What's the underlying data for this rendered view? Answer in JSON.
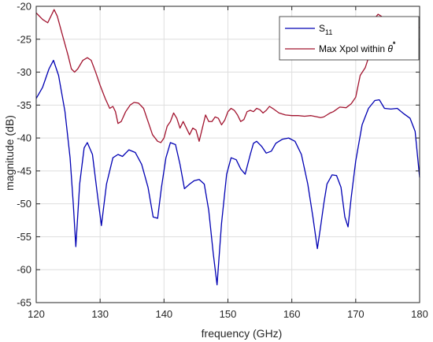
{
  "chart_data": {
    "type": "line",
    "title": "",
    "xlabel": "frequency (GHz)",
    "ylabel": "magnitude (dB)",
    "xlim": [
      120,
      180
    ],
    "ylim": [
      -65,
      -20
    ],
    "xticks": [
      120,
      130,
      140,
      150,
      160,
      170,
      180
    ],
    "yticks": [
      -20,
      -25,
      -30,
      -35,
      -40,
      -45,
      -50,
      -55,
      -60,
      -65
    ],
    "grid": true,
    "legend_position": "top-right",
    "legend": {
      "s11_main": "S",
      "s11_sub": "11",
      "xpol_main": "Max Xpol within ",
      "xpol_symbol": "θ",
      "xpol_sup": "*"
    },
    "series": [
      {
        "color": "#0000b3",
        "x": [
          120,
          121,
          122,
          122.7,
          123.5,
          124.5,
          125.3,
          125.8,
          126.2,
          126.8,
          127.5,
          128,
          128.8,
          129.5,
          130.2,
          131,
          132,
          132.8,
          133.5,
          134.5,
          135.5,
          136.5,
          137.5,
          138.3,
          139,
          139.6,
          140.3,
          141,
          141.8,
          142.5,
          143.2,
          144,
          144.7,
          145.5,
          146.3,
          147,
          147.7,
          148.3,
          149,
          149.8,
          150.5,
          151.3,
          152,
          152.7,
          153.5,
          154,
          154.5,
          155.3,
          156,
          156.8,
          157.5,
          158.5,
          159.5,
          160.5,
          161.5,
          162.5,
          163.3,
          164,
          164.5,
          165,
          165.5,
          166.3,
          167,
          167.7,
          168.3,
          168.8,
          169.3,
          170,
          171,
          172,
          173,
          173.7,
          174.5,
          175.5,
          176.5,
          177.5,
          178.5,
          179.3,
          180
        ],
        "values": [
          -34,
          -32.3,
          -29.5,
          -28.2,
          -30.5,
          -36,
          -43,
          -50,
          -56.5,
          -47,
          -41.5,
          -40.7,
          -42.5,
          -48,
          -53.3,
          -47,
          -43,
          -42.5,
          -42.8,
          -41.8,
          -42.2,
          -44,
          -47.5,
          -52,
          -52.2,
          -47.5,
          -43,
          -40.7,
          -41,
          -44,
          -47.7,
          -47,
          -46.5,
          -46.3,
          -47,
          -51,
          -57.5,
          -62.3,
          -53,
          -45.5,
          -43,
          -43.3,
          -44.7,
          -45.5,
          -42.5,
          -40.8,
          -40.5,
          -41.3,
          -42.3,
          -42,
          -40.8,
          -40.2,
          -40,
          -40.5,
          -42.5,
          -47,
          -52,
          -56.8,
          -53.5,
          -50,
          -47,
          -45.6,
          -45.7,
          -47.5,
          -52,
          -53.5,
          -49,
          -43.5,
          -38,
          -35.5,
          -34.3,
          -34.2,
          -35.5,
          -35.6,
          -35.5,
          -36.3,
          -37,
          -39,
          -46
        ]
      },
      {
        "color": "#a2142f",
        "x": [
          120,
          121,
          121.8,
          122.3,
          122.8,
          123.3,
          124,
          125,
          125.5,
          126,
          126.5,
          127.3,
          128,
          128.6,
          129.3,
          130,
          130.8,
          131.5,
          132,
          132.4,
          132.8,
          133.3,
          134,
          134.7,
          135.3,
          136,
          136.8,
          137.5,
          138.2,
          139,
          139.5,
          140,
          140.5,
          141,
          141.5,
          142,
          142.5,
          143,
          143.5,
          144,
          144.5,
          145,
          145.5,
          146,
          146.5,
          147,
          147.5,
          148,
          148.5,
          149,
          149.5,
          150,
          150.5,
          151,
          151.5,
          152,
          152.5,
          153,
          153.5,
          154,
          154.5,
          155,
          155.5,
          156,
          156.5,
          157,
          158,
          159,
          160,
          161,
          162,
          163,
          164,
          164.5,
          165,
          165.5,
          166,
          166.5,
          167.5,
          168.5,
          169.3,
          170,
          170.7,
          171.5,
          172,
          172.5,
          173,
          173.5,
          174,
          175,
          176,
          177,
          178,
          179,
          180
        ],
        "values": [
          -21,
          -22,
          -22.5,
          -21.5,
          -20.5,
          -21.5,
          -24,
          -27.5,
          -29.5,
          -30,
          -29.5,
          -28.2,
          -27.8,
          -28.2,
          -30,
          -32,
          -34,
          -35.5,
          -35.2,
          -36,
          -37.8,
          -37.5,
          -36,
          -35,
          -34.6,
          -34.7,
          -35.5,
          -37.5,
          -39.5,
          -40.5,
          -40.7,
          -40,
          -38.2,
          -37.5,
          -36.2,
          -37,
          -38.5,
          -37.5,
          -38.5,
          -39.5,
          -38.5,
          -38.8,
          -40.5,
          -38.5,
          -36.5,
          -37.5,
          -37.5,
          -36.8,
          -37,
          -38,
          -37.3,
          -36,
          -35.5,
          -35.8,
          -36.5,
          -37.5,
          -37.2,
          -36,
          -35.8,
          -36,
          -35.5,
          -35.7,
          -36.2,
          -35.8,
          -35.2,
          -35.5,
          -36.2,
          -36.5,
          -36.6,
          -36.6,
          -36.7,
          -36.6,
          -36.8,
          -36.9,
          -36.8,
          -36.5,
          -36.2,
          -36,
          -35.3,
          -35.4,
          -34.8,
          -33.8,
          -30.5,
          -29.3,
          -27.8,
          -25,
          -21.8,
          -21.2,
          -21.5,
          -22.5,
          -22.3,
          -22.2,
          -22.5,
          -23.3,
          -23.2
        ]
      }
    ]
  }
}
